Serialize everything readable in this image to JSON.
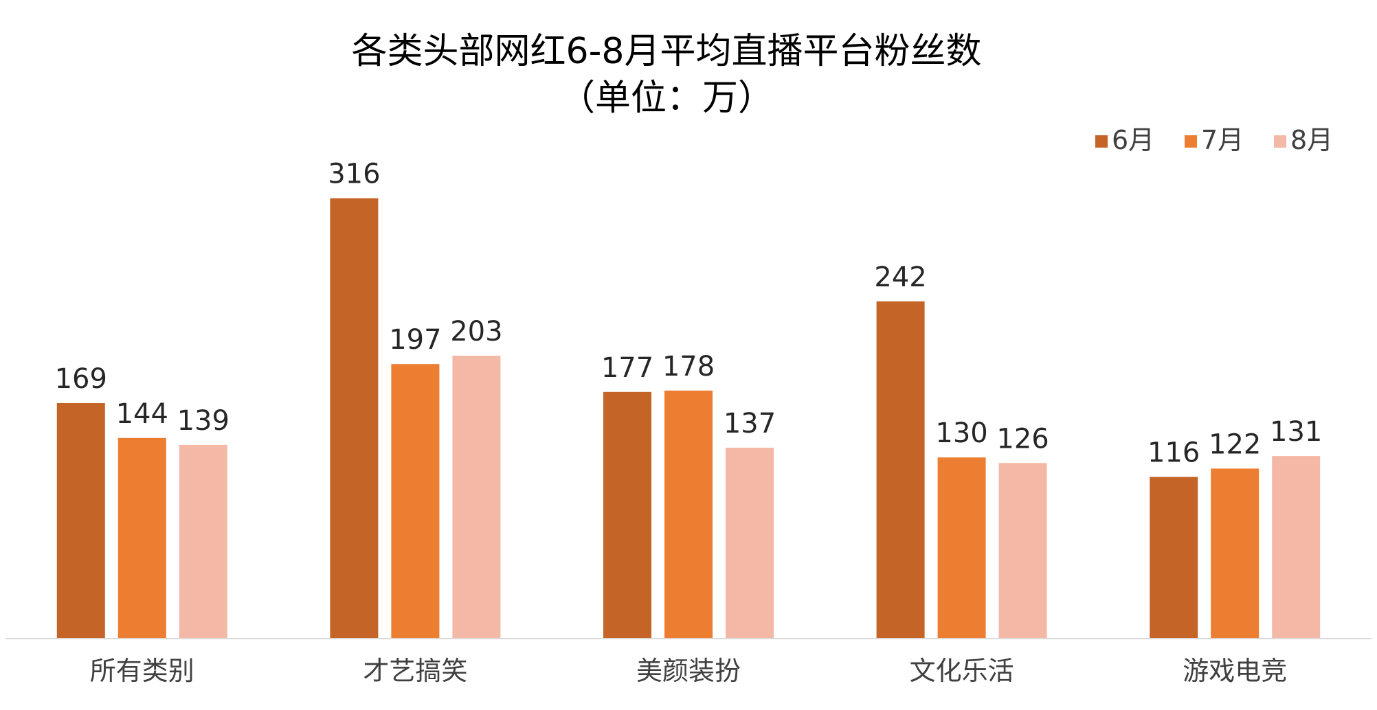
{
  "chart_data": {
    "type": "bar",
    "title": "各类头部网红6-8月平均直播平台粉丝数",
    "subtitle": "（单位：万）",
    "categories": [
      "所有类别",
      "才艺搞笑",
      "美颜装扮",
      "文化乐活",
      "游戏电竞"
    ],
    "series": [
      {
        "name": "6月",
        "color": "#C46427",
        "values": [
          169,
          316,
          177,
          242,
          116
        ]
      },
      {
        "name": "7月",
        "color": "#ED7D31",
        "values": [
          144,
          197,
          178,
          130,
          122
        ]
      },
      {
        "name": "8月",
        "color": "#F4B9A6",
        "values": [
          139,
          203,
          137,
          126,
          131
        ]
      }
    ],
    "ylim": [
      0,
      340
    ],
    "grid": false,
    "legend_position": "top-right",
    "data_labels": true,
    "axis_color": "#D9D9D9"
  }
}
